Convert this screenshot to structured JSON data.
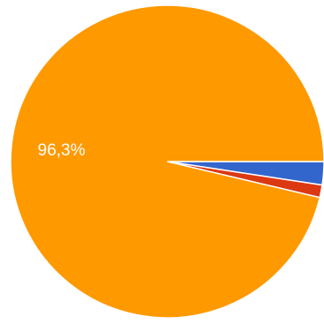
{
  "chart_data": {
    "type": "pie",
    "slices": [
      {
        "value": 96.3,
        "color": "#FF9900",
        "label": "96,3%"
      },
      {
        "value": 2.4,
        "color": "#3366CC",
        "label": ""
      },
      {
        "value": 1.3,
        "color": "#DC3912",
        "label": ""
      }
    ],
    "start_angle_deg": 0,
    "direction": "counterclockwise-from-right",
    "legend": "none"
  }
}
